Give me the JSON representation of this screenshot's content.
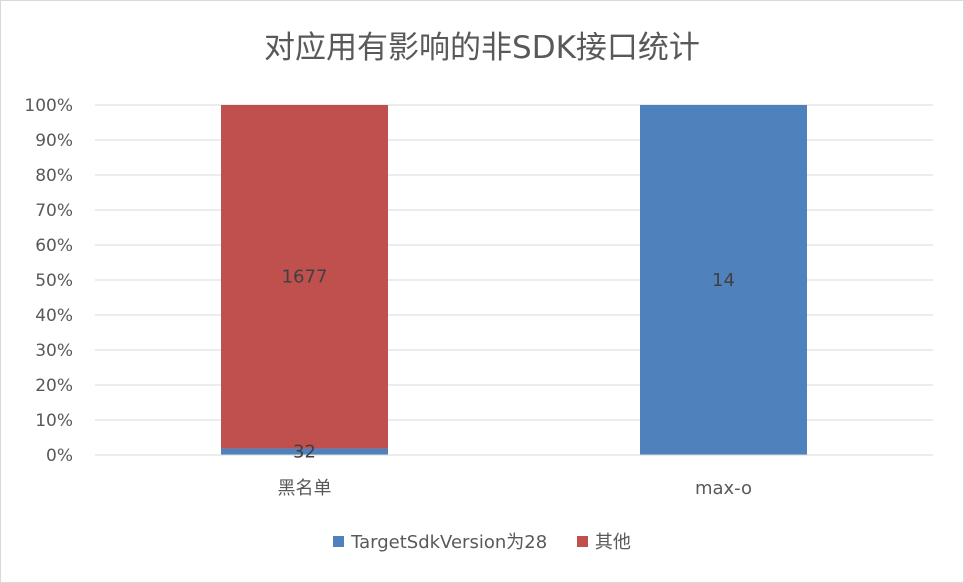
{
  "chart_data": {
    "type": "bar",
    "stacked": "percent",
    "title": "对应用有影响的非SDK接口统计",
    "categories": [
      "黑名单",
      "max-o"
    ],
    "series": [
      {
        "name": "TargetSdkVersion为28",
        "color": "#4f81bd",
        "values": [
          32,
          14
        ]
      },
      {
        "name": "其他",
        "color": "#c0504d",
        "values": [
          1677,
          0
        ]
      }
    ],
    "data_labels": [
      [
        "32",
        "14"
      ],
      [
        "1677",
        ""
      ]
    ],
    "y_ticks": [
      "0%",
      "10%",
      "20%",
      "30%",
      "40%",
      "50%",
      "60%",
      "70%",
      "80%",
      "90%",
      "100%"
    ],
    "ylim": [
      0,
      100
    ],
    "grid": true,
    "legend": "bottom"
  }
}
